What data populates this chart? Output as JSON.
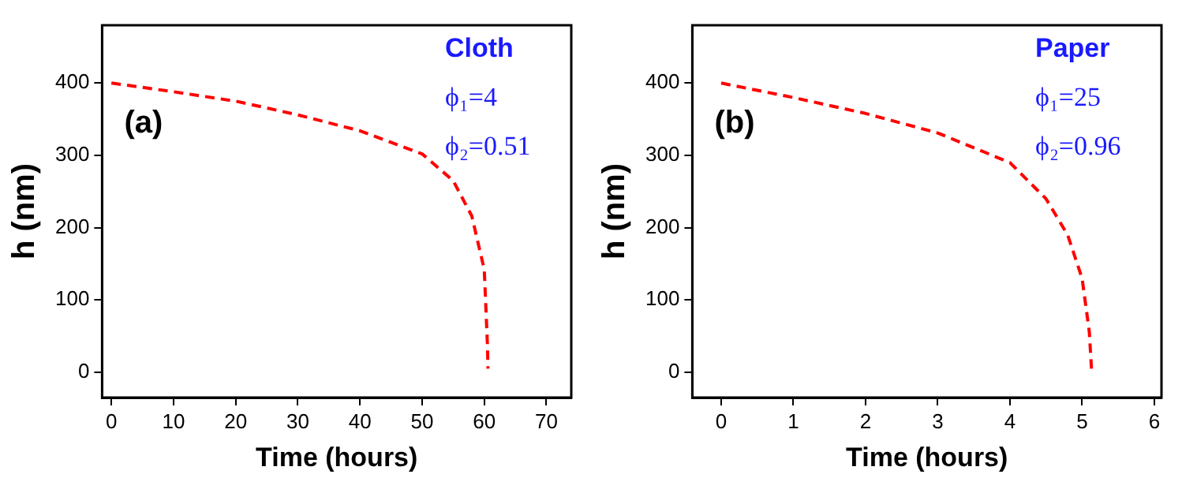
{
  "chart_data": [
    {
      "type": "line",
      "xlabel": "Time (hours)",
      "ylabel": "h (nm)",
      "annotations": [
        "(a)",
        "Cloth",
        "ϕ₁=4",
        "ϕ₂=0.51"
      ],
      "xlim": [
        -1.5,
        74
      ],
      "xticks": [
        0,
        10,
        20,
        30,
        40,
        50,
        60,
        70
      ],
      "ylim": [
        -35,
        480
      ],
      "yticks": [
        0,
        100,
        200,
        300,
        400
      ],
      "grid": false,
      "legend": false,
      "marker": "none",
      "line_style": "dashed",
      "series": [
        {
          "color": "#ff0000",
          "x": [
            0,
            10,
            20,
            30,
            40,
            50,
            55,
            58,
            60,
            60.5,
            60.6
          ],
          "values": [
            400,
            388,
            375,
            356,
            334,
            302,
            265,
            216,
            142,
            40,
            5
          ]
        }
      ]
    },
    {
      "type": "line",
      "xlabel": "Time (hours)",
      "ylabel": "h (nm)",
      "annotations": [
        "(b)",
        "Paper",
        "ϕ₁=25",
        "ϕ₂=0.96"
      ],
      "xlim": [
        -0.4,
        6.1
      ],
      "xticks": [
        0,
        1,
        2,
        3,
        4,
        5,
        6
      ],
      "ylim": [
        -35,
        480
      ],
      "yticks": [
        0,
        100,
        200,
        300,
        400
      ],
      "grid": false,
      "legend": false,
      "marker": "none",
      "line_style": "dashed",
      "series": [
        {
          "color": "#ff0000",
          "x": [
            0,
            1,
            2,
            3,
            4,
            4.5,
            4.8,
            5,
            5.1,
            5.13
          ],
          "values": [
            400,
            380,
            358,
            331,
            290,
            240,
            190,
            130,
            56,
            5
          ]
        }
      ]
    }
  ]
}
